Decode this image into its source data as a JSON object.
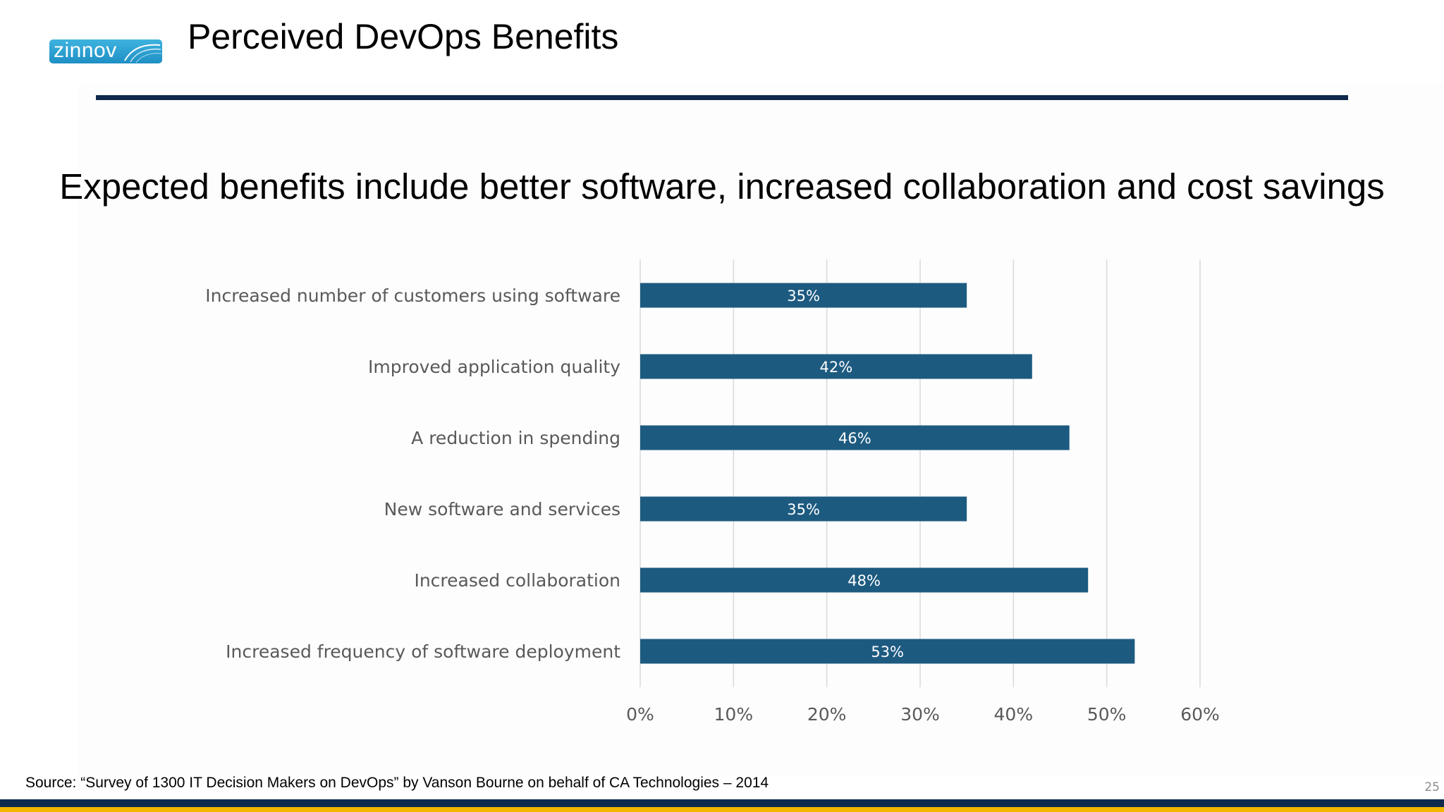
{
  "slide": {
    "title": "Perceived DevOps Benefits",
    "headline": "Expected benefits include better software, increased collaboration and cost savings",
    "logo_text": "zinnov",
    "source": "Source: “Survey of 1300 IT Decision Makers on DevOps” by Vanson Bourne on behalf of CA Technologies – 2014",
    "page_number": "25"
  },
  "colors": {
    "bar": "#1d5a80",
    "title_rule": "#0f2a4c",
    "footer_navy": "#0f2a4c",
    "footer_gold": "#f4b600",
    "axis_text": "#595959",
    "gridline": "#d9d9d9"
  },
  "chart_data": {
    "type": "bar",
    "orientation": "horizontal",
    "categories": [
      "Increased number of customers using software",
      "Improved application quality",
      "A reduction in spending",
      "New software and services",
      "Increased collaboration",
      "Increased frequency of software deployment"
    ],
    "values": [
      35,
      42,
      46,
      35,
      48,
      53
    ],
    "data_labels": [
      "35%",
      "42%",
      "46%",
      "35%",
      "48%",
      "53%"
    ],
    "x_ticks": [
      0,
      10,
      20,
      30,
      40,
      50,
      60
    ],
    "x_tick_labels": [
      "0%",
      "10%",
      "20%",
      "30%",
      "40%",
      "50%",
      "60%"
    ],
    "xlim": [
      0,
      60
    ],
    "grid": true,
    "legend": "none"
  }
}
